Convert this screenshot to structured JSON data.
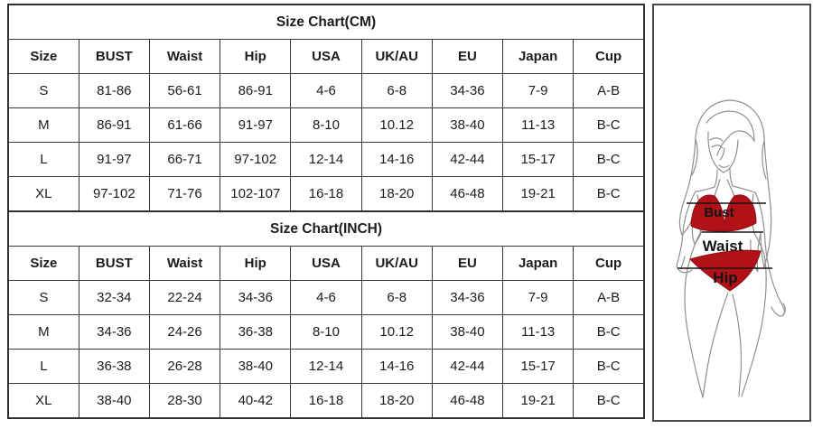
{
  "chart_data": [
    {
      "type": "table",
      "title": "Size Chart(CM)",
      "columns": [
        "Size",
        "BUST",
        "Waist",
        "Hip",
        "USA",
        "UK/AU",
        "EU",
        "Japan",
        "Cup"
      ],
      "rows": [
        [
          "S",
          "81-86",
          "56-61",
          "86-91",
          "4-6",
          "6-8",
          "34-36",
          "7-9",
          "A-B"
        ],
        [
          "M",
          "86-91",
          "61-66",
          "91-97",
          "8-10",
          "10.12",
          "38-40",
          "11-13",
          "B-C"
        ],
        [
          "L",
          "91-97",
          "66-71",
          "97-102",
          "12-14",
          "14-16",
          "42-44",
          "15-17",
          "B-C"
        ],
        [
          "XL",
          "97-102",
          "71-76",
          "102-107",
          "16-18",
          "18-20",
          "46-48",
          "19-21",
          "B-C"
        ]
      ]
    },
    {
      "type": "table",
      "title": "Size Chart(INCH)",
      "columns": [
        "Size",
        "BUST",
        "Waist",
        "Hip",
        "USA",
        "UK/AU",
        "EU",
        "Japan",
        "Cup"
      ],
      "rows": [
        [
          "S",
          "32-34",
          "22-24",
          "34-36",
          "4-6",
          "6-8",
          "34-36",
          "7-9",
          "A-B"
        ],
        [
          "M",
          "34-36",
          "24-26",
          "36-38",
          "8-10",
          "10.12",
          "38-40",
          "11-13",
          "B-C"
        ],
        [
          "L",
          "36-38",
          "26-28",
          "38-40",
          "12-14",
          "14-16",
          "42-44",
          "15-17",
          "B-C"
        ],
        [
          "XL",
          "38-40",
          "28-30",
          "40-42",
          "16-18",
          "18-20",
          "46-48",
          "19-21",
          "B-C"
        ]
      ]
    }
  ],
  "figure": {
    "bust_label": "Bust",
    "waist_label": "Waist",
    "hip_label": "Hip",
    "colors": {
      "bikini_red": "#b01218",
      "bikini_red_edge": "#8f0e13",
      "line_art_gray": "#8f8f8f",
      "measure_line_black": "#141414",
      "panel_border_gray": "#4a4a4a",
      "table_border": "#383838"
    }
  }
}
